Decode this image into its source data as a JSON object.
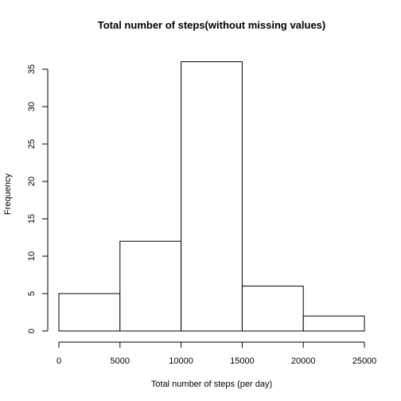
{
  "chart_data": {
    "type": "bar",
    "title": "Total number of steps(without missing values)",
    "xlabel": "Total number of steps (per day)",
    "ylabel": "Frequency",
    "bins": [
      {
        "from": 0,
        "to": 5000,
        "count": 5
      },
      {
        "from": 5000,
        "to": 10000,
        "count": 12
      },
      {
        "from": 10000,
        "to": 15000,
        "count": 36
      },
      {
        "from": 15000,
        "to": 20000,
        "count": 6
      },
      {
        "from": 20000,
        "to": 25000,
        "count": 2
      }
    ],
    "xlim": [
      0,
      25000
    ],
    "ylim": [
      0,
      36
    ],
    "xticks": [
      "0",
      "5000",
      "10000",
      "15000",
      "20000",
      "25000"
    ],
    "yticks": [
      "0",
      "5",
      "10",
      "15",
      "20",
      "25",
      "30",
      "35"
    ],
    "grid": false,
    "bar_fill": "#ffffff",
    "bar_stroke": "#000000"
  }
}
